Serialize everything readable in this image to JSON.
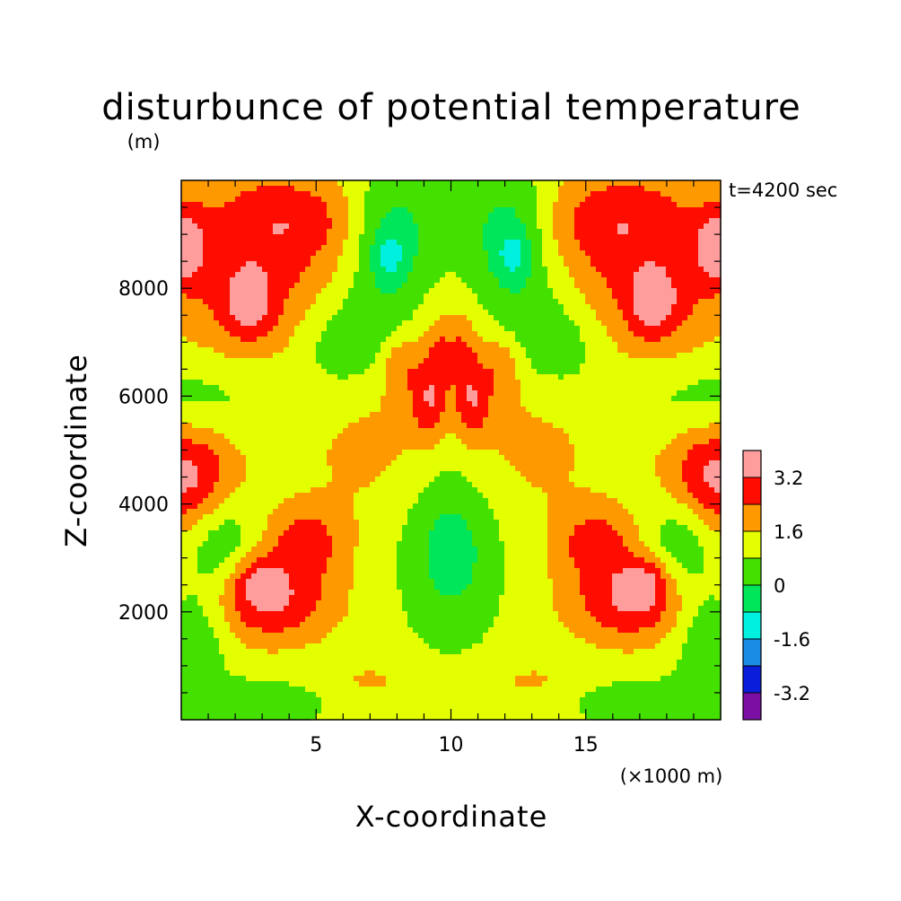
{
  "chart_data": {
    "type": "heatmap",
    "title": "disturbunce of potential temperature",
    "ylabel": "Z-coordinate",
    "xlabel": "X-coordinate",
    "y_unit": "(m)",
    "x_unit": "(×1000 m)",
    "time_label": "t=4200 sec",
    "xlim": [
      0,
      20
    ],
    "ylim": [
      0,
      10000
    ],
    "x_ticks": [
      5,
      10,
      15
    ],
    "y_ticks": [
      2000,
      4000,
      6000,
      8000
    ],
    "grid": false,
    "levels": [
      -4.0,
      -3.2,
      -2.4,
      -1.6,
      -0.8,
      0,
      0.8,
      1.6,
      2.4,
      3.2,
      4.0
    ],
    "level_colors": [
      "#7b0fa3",
      "#0a1ed9",
      "#1a8ce6",
      "#00f0e0",
      "#00e65a",
      "#44e000",
      "#e3ff00",
      "#ff9900",
      "#ff0d00",
      "#ff9c9c"
    ],
    "colorbar_labels": [
      "3.2",
      "1.6",
      "0",
      "-1.6",
      "-3.2"
    ],
    "colorbar_label_values": [
      3.2,
      1.6,
      0,
      -1.6,
      -3.2
    ],
    "field_base": 1.1,
    "features": [
      {
        "x": 2.6,
        "y": 8400,
        "amp": 1.8,
        "sx": 2.3,
        "sy": 1400
      },
      {
        "x": 2.5,
        "y": 7700,
        "amp": 1.4,
        "sx": 0.6,
        "sy": 400
      },
      {
        "x": 0.0,
        "y": 8800,
        "amp": 2.2,
        "sx": 0.6,
        "sy": 500
      },
      {
        "x": 0.3,
        "y": 4500,
        "amp": 2.5,
        "sx": 1.3,
        "sy": 700
      },
      {
        "x": 3.2,
        "y": 2200,
        "amp": 2.2,
        "sx": 1.7,
        "sy": 550
      },
      {
        "x": 2.8,
        "y": 2600,
        "amp": 1.2,
        "sx": 0.6,
        "sy": 300
      },
      {
        "x": 4.6,
        "y": 3300,
        "amp": 1.6,
        "sx": 1.0,
        "sy": 450
      },
      {
        "x": 7.3,
        "y": 5300,
        "amp": 0.7,
        "sx": 2.5,
        "sy": 1400
      },
      {
        "x": 8.1,
        "y": 6600,
        "amp": 1.1,
        "sx": 0.5,
        "sy": 400
      },
      {
        "x": 9.2,
        "y": 5900,
        "amp": 1.6,
        "sx": 0.5,
        "sy": 500
      },
      {
        "x": 9.7,
        "y": 6800,
        "amp": 1.3,
        "sx": 0.5,
        "sy": 500
      },
      {
        "x": 4.6,
        "y": 9300,
        "amp": 0.9,
        "sx": 1.5,
        "sy": 500
      },
      {
        "x": 7.7,
        "y": 8800,
        "amp": -1.5,
        "sx": 1.0,
        "sy": 1000
      },
      {
        "x": 7.7,
        "y": 8600,
        "amp": -1.0,
        "sx": 0.4,
        "sy": 300
      },
      {
        "x": 6.0,
        "y": 7000,
        "amp": -1.3,
        "sx": 1.4,
        "sy": 700
      },
      {
        "x": 1.0,
        "y": 6000,
        "amp": -0.9,
        "sx": 2.5,
        "sy": 600
      },
      {
        "x": 10.0,
        "y": 3200,
        "amp": -1.6,
        "sx": 1.3,
        "sy": 1100
      },
      {
        "x": 10.0,
        "y": 9200,
        "amp": -0.6,
        "sx": 1.2,
        "sy": 700
      },
      {
        "x": 1.5,
        "y": 3300,
        "amp": -1.2,
        "sx": 0.9,
        "sy": 900
      },
      {
        "x": 0.5,
        "y": 1500,
        "amp": -1.1,
        "sx": 0.8,
        "sy": 700
      },
      {
        "x": 2.5,
        "y": 300,
        "amp": -1.0,
        "sx": 2.0,
        "sy": 300
      },
      {
        "x": 7.0,
        "y": 700,
        "amp": 0.6,
        "sx": 1.2,
        "sy": 300
      }
    ]
  }
}
